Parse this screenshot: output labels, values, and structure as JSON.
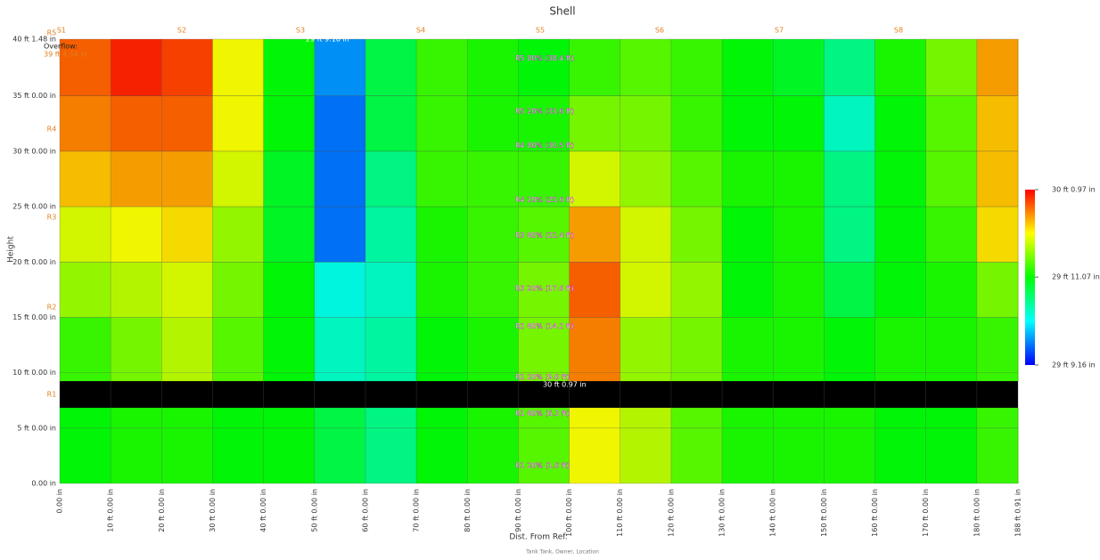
{
  "chart_data": {
    "type": "heatmap",
    "title": "Shell",
    "xlabel": "Dist. From Ref.",
    "ylabel": "Height",
    "footer": "Tank Tank, Owner, Location",
    "xlim": [
      0,
      188.076
    ],
    "ylim": [
      0,
      40.1233
    ],
    "xticks": [
      {
        "value": 0,
        "label": "0.00 in"
      },
      {
        "value": 10,
        "label": "10 ft 0.00 in"
      },
      {
        "value": 20,
        "label": "20 ft 0.00 in"
      },
      {
        "value": 30,
        "label": "30 ft 0.00 in"
      },
      {
        "value": 40,
        "label": "40 ft 0.00 in"
      },
      {
        "value": 50,
        "label": "50 ft 0.00 in"
      },
      {
        "value": 60,
        "label": "60 ft 0.00 in"
      },
      {
        "value": 70,
        "label": "70 ft 0.00 in"
      },
      {
        "value": 80,
        "label": "80 ft 0.00 in"
      },
      {
        "value": 90,
        "label": "90 ft 0.00 in"
      },
      {
        "value": 100,
        "label": "100 ft 0.00 in"
      },
      {
        "value": 110,
        "label": "110 ft 0.00 in"
      },
      {
        "value": 120,
        "label": "120 ft 0.00 in"
      },
      {
        "value": 130,
        "label": "130 ft 0.00 in"
      },
      {
        "value": 140,
        "label": "140 ft 0.00 in"
      },
      {
        "value": 150,
        "label": "150 ft 0.00 in"
      },
      {
        "value": 160,
        "label": "160 ft 0.00 in"
      },
      {
        "value": 170,
        "label": "170 ft 0.00 in"
      },
      {
        "value": 180,
        "label": "180 ft 0.00 in"
      },
      {
        "value": 188.076,
        "label": "188 ft 0.91 in"
      }
    ],
    "yticks": [
      {
        "value": 0,
        "label": "0.00 in"
      },
      {
        "value": 5,
        "label": "5 ft 0.00 in"
      },
      {
        "value": 10,
        "label": "10 ft 0.00 in"
      },
      {
        "value": 15,
        "label": "15 ft 0.00 in"
      },
      {
        "value": 20,
        "label": "20 ft 0.00 in"
      },
      {
        "value": 25,
        "label": "25 ft 0.00 in"
      },
      {
        "value": 30,
        "label": "30 ft 0.00 in"
      },
      {
        "value": 35,
        "label": "35 ft 0.00 in"
      },
      {
        "value": 40.1233,
        "label": "40 ft 1.48 in"
      }
    ],
    "grid": true,
    "x_edges": [
      0,
      10,
      20,
      30,
      40,
      50,
      60,
      70,
      80,
      90,
      100,
      110,
      120,
      130,
      140,
      150,
      160,
      170,
      180,
      188.076
    ],
    "y_edges": [
      0,
      6.83,
      9.24,
      15,
      20,
      25,
      30,
      35,
      40.1233
    ],
    "z": [
      [
        29.92,
        29.93,
        29.93,
        29.92,
        29.92,
        29.9,
        29.88,
        29.92,
        29.93,
        29.95,
        30.0,
        29.98,
        29.95,
        29.93,
        29.93,
        29.93,
        29.92,
        29.92,
        29.94
      ],
      [
        null,
        null,
        null,
        null,
        null,
        null,
        null,
        null,
        null,
        null,
        null,
        null,
        null,
        null,
        null,
        null,
        null,
        null,
        null
      ],
      [
        29.94,
        29.96,
        29.98,
        29.95,
        29.92,
        29.86,
        29.87,
        29.92,
        29.93,
        29.96,
        30.04,
        29.97,
        29.96,
        29.93,
        29.93,
        29.92,
        29.93,
        29.93,
        29.94
      ],
      [
        29.97,
        29.98,
        29.99,
        29.96,
        29.92,
        29.85,
        29.86,
        29.93,
        29.94,
        29.96,
        30.05,
        29.99,
        29.97,
        29.92,
        29.93,
        29.9,
        29.92,
        29.93,
        29.96
      ],
      [
        29.99,
        30.0,
        30.01,
        29.97,
        29.91,
        29.8,
        29.87,
        29.93,
        29.94,
        29.95,
        30.03,
        29.99,
        29.96,
        29.92,
        29.93,
        29.88,
        29.92,
        29.94,
        30.01
      ],
      [
        30.02,
        30.03,
        30.03,
        29.99,
        29.91,
        29.8,
        29.88,
        29.94,
        29.94,
        29.94,
        29.99,
        29.97,
        29.95,
        29.93,
        29.93,
        29.88,
        29.92,
        29.95,
        30.02
      ],
      [
        30.04,
        30.05,
        30.05,
        30.0,
        29.92,
        29.8,
        29.9,
        29.94,
        29.93,
        29.93,
        29.96,
        29.96,
        29.94,
        29.92,
        29.92,
        29.86,
        29.92,
        29.95,
        30.02
      ],
      [
        30.05,
        30.07,
        30.06,
        30.0,
        29.92,
        29.81,
        29.9,
        29.94,
        29.93,
        29.92,
        29.94,
        29.95,
        29.94,
        29.92,
        29.91,
        29.88,
        29.93,
        29.96,
        30.03
      ]
    ],
    "colorbar": {
      "lim": [
        29.7633,
        30.0808
      ],
      "ticks": [
        {
          "value": 30.0808,
          "label": "30 ft 0.97 in"
        },
        {
          "value": 29.9225,
          "label": "29 ft 11.07 in"
        },
        {
          "value": 29.7633,
          "label": "29 ft 9.16 in"
        }
      ]
    },
    "shells": [
      "S1",
      "S2",
      "S3",
      "S4",
      "S5",
      "S6",
      "S7",
      "S8"
    ],
    "rings": [
      "R5",
      "R4",
      "R3",
      "R2",
      "R1"
    ],
    "overflow": {
      "label": "Overflow:",
      "value": "39 ft 4.54 in"
    },
    "markers": [
      "29 ft 9.16 in",
      "30 ft 0.97 in"
    ],
    "annotations": [
      {
        "text": "R5 80% (38.4 ft)",
        "y": 38.4
      },
      {
        "text": "R5 20% (33.6 ft)",
        "y": 33.6
      },
      {
        "text": "R4 80% (30.5 ft)",
        "y": 30.5
      },
      {
        "text": "R4 20% (25.6 ft)",
        "y": 25.6
      },
      {
        "text": "R3 80% (22.4 ft)",
        "y": 22.4
      },
      {
        "text": "R3 20% (17.6 ft)",
        "y": 17.6
      },
      {
        "text": "R2 80% (14.2 ft)",
        "y": 14.2
      },
      {
        "text": "R2 20% (9.6 ft)",
        "y": 9.6
      },
      {
        "text": "R1 80% (6.3 ft)",
        "y": 6.3
      },
      {
        "text": "R1 20% (1.6 ft)",
        "y": 1.6
      }
    ]
  }
}
